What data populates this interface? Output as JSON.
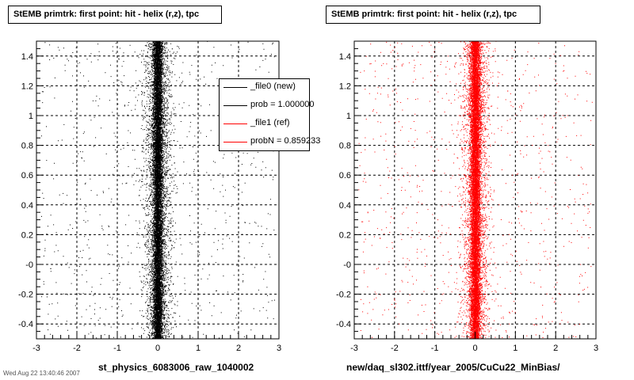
{
  "chart_data": [
    {
      "type": "scatter",
      "title": "StEMB primtrk: first point: hit - helix (r,z), tpc",
      "xlabel": "st_physics_6083006_raw_1040002",
      "ylabel": "",
      "xlim": [
        -3,
        3
      ],
      "ylim": [
        -0.5,
        1.5
      ],
      "x_ticks": [
        "-3",
        "-2",
        "-1",
        "0",
        "1",
        "2",
        "3"
      ],
      "y_ticks": [
        "-0.4",
        "-0.2",
        "-0",
        "0.2",
        "0.4",
        "0.6",
        "0.8",
        "1",
        "1.2",
        "1.4"
      ],
      "grid": true,
      "marker_color": "#000000",
      "distribution": {
        "x_center": 0.0,
        "x_core_width": 0.15,
        "points": "dense vertical band at x≈0, sparse halo up to |x|≈3"
      },
      "legend": {
        "placement": "top-right",
        "entries": [
          {
            "label": "_file0 (new)",
            "color": "#000000"
          },
          {
            "label": "prob = 1.000000",
            "color": "#000000"
          },
          {
            "label": "_file1 (ref)",
            "color": "#ff0000"
          },
          {
            "label": "probN = 0.859233",
            "color": "#ff0000"
          }
        ]
      }
    },
    {
      "type": "scatter",
      "title": "StEMB primtrk: first point: hit - helix (r,z), tpc",
      "xlabel": "new/daq_sl302.ittf/year_2005/CuCu22_MinBias/",
      "ylabel": "",
      "xlim": [
        -3,
        3
      ],
      "ylim": [
        -0.5,
        1.5
      ],
      "x_ticks": [
        "-3",
        "-2",
        "-1",
        "0",
        "1",
        "2",
        "3"
      ],
      "y_ticks": [
        "-0.4",
        "-0.2",
        "-0",
        "0.2",
        "0.4",
        "0.6",
        "0.8",
        "1",
        "1.2",
        "1.4"
      ],
      "grid": true,
      "marker_color": "#ff0000",
      "distribution": {
        "x_center": 0.0,
        "x_core_width": 0.15,
        "points": "dense vertical band at x≈0, sparse halo up to |x|≈3"
      }
    }
  ],
  "footer": "Wed Aug 22 13:40:46 2007"
}
